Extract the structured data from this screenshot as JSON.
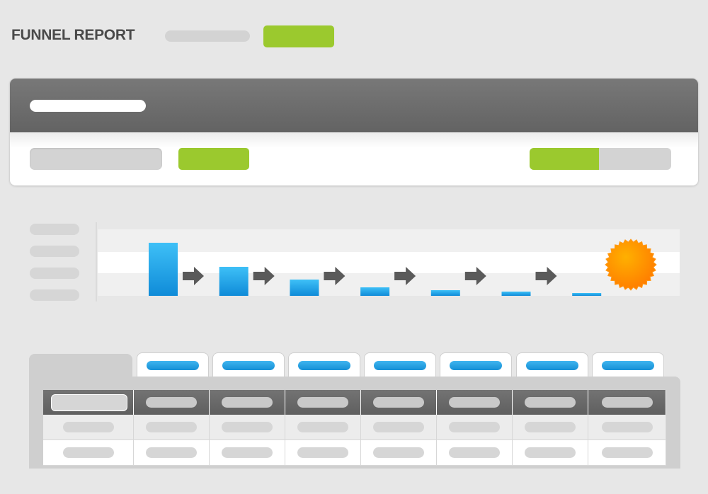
{
  "header": {
    "title": "FUNNEL REPORT"
  },
  "colors": {
    "accent_green": "#9bc92e",
    "bar_blue": "#1a9be3",
    "badge_orange": "#ff8c00",
    "header_gray": "#6b6b6b"
  },
  "chart_data": {
    "type": "bar",
    "title": "",
    "categories": [
      "",
      "",
      "",
      "",
      "",
      "",
      ""
    ],
    "values": [
      75,
      41,
      23,
      12,
      8,
      6,
      4
    ],
    "ylim": [
      0,
      100
    ],
    "grid": true,
    "legend": "none"
  },
  "funnel": {
    "arrow_icon": "arrow-right-icon",
    "goal_icon": "starburst-badge-icon"
  },
  "table": {
    "column_count": 8,
    "body_row_count": 2
  }
}
